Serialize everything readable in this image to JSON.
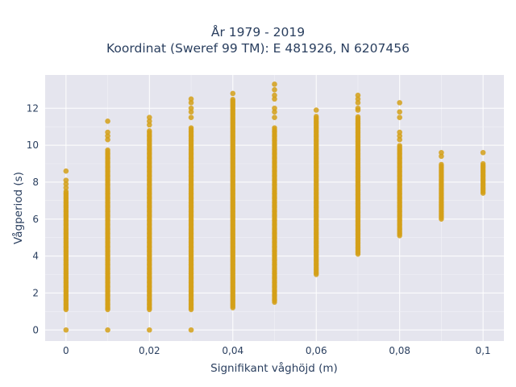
{
  "chart_data": {
    "type": "scatter",
    "title": "År 1979 - 2019",
    "subtitle": "Koordinat (Sweref 99 TM): E 481926, N 6207456",
    "xlabel": "Signifikant våghöjd (m)",
    "ylabel": "Vågperiod (s)",
    "xlim": [
      -0.005,
      0.105
    ],
    "ylim": [
      -0.6,
      13.8
    ],
    "x_ticks": [
      0,
      0.02,
      0.04,
      0.06,
      0.08,
      0.1
    ],
    "x_tick_labels": [
      "0",
      "0,02",
      "0,04",
      "0,06",
      "0,08",
      "0,1"
    ],
    "y_ticks": [
      0,
      2,
      4,
      6,
      8,
      10,
      12
    ],
    "y_tick_labels": [
      "0",
      "2",
      "4",
      "6",
      "8",
      "10",
      "12"
    ],
    "grid": true,
    "marker_color": "#d4a017",
    "plot_bg": "#e5e5ee",
    "columns": [
      {
        "x": 0.0,
        "min": 1.1,
        "max": 7.5,
        "outliers": [
          0.0,
          7.7,
          7.9,
          8.1,
          8.6
        ]
      },
      {
        "x": 0.01,
        "min": 1.1,
        "max": 9.8,
        "outliers": [
          0.0,
          10.3,
          10.5,
          10.7,
          11.3
        ]
      },
      {
        "x": 0.02,
        "min": 1.1,
        "max": 10.8,
        "outliers": [
          0.0,
          11.1,
          11.3,
          11.5
        ]
      },
      {
        "x": 0.03,
        "min": 1.1,
        "max": 11.0,
        "outliers": [
          0.0,
          11.5,
          11.8,
          12.0,
          12.3,
          12.5
        ]
      },
      {
        "x": 0.04,
        "min": 1.2,
        "max": 12.5,
        "outliers": [
          12.8
        ]
      },
      {
        "x": 0.05,
        "min": 1.5,
        "max": 11.0,
        "outliers": [
          11.5,
          11.8,
          12.0,
          12.5,
          12.7,
          13.0,
          13.3
        ]
      },
      {
        "x": 0.06,
        "min": 3.0,
        "max": 11.6,
        "outliers": [
          11.9
        ]
      },
      {
        "x": 0.07,
        "min": 4.1,
        "max": 11.6,
        "outliers": [
          11.9,
          12.0,
          12.3,
          12.5,
          12.7
        ]
      },
      {
        "x": 0.08,
        "min": 5.1,
        "max": 10.0,
        "outliers": [
          10.3,
          10.5,
          10.7,
          11.5,
          11.8,
          12.3
        ]
      },
      {
        "x": 0.09,
        "min": 6.0,
        "max": 9.0,
        "outliers": [
          9.4,
          9.6
        ]
      },
      {
        "x": 0.1,
        "min": 7.4,
        "max": 9.0,
        "outliers": [
          9.6
        ]
      }
    ]
  }
}
